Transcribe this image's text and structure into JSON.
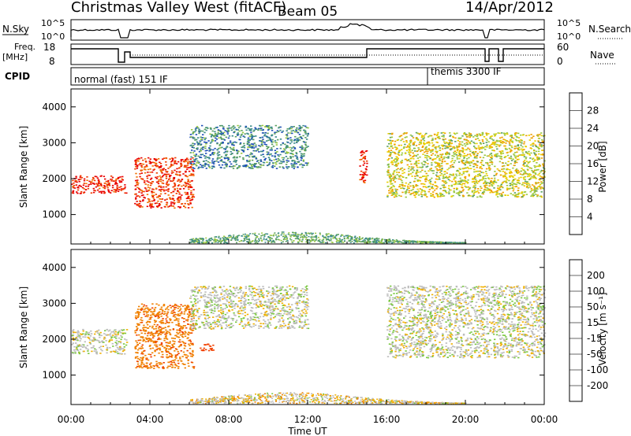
{
  "header": {
    "station": "Christmas Valley West (fitACF)",
    "beam": "Beam 05",
    "date": "14/Apr/2012"
  },
  "strips": {
    "nsky_label": "N.Sky",
    "nsearch_label": "N.Search",
    "ticks_left_top": [
      "10^5",
      "10^0"
    ],
    "ticks_right_top": [
      "10^5",
      "10^0"
    ],
    "freq_label": "Freq.",
    "freq_unit": "[MHz]",
    "freq_ticks": [
      "18",
      "8"
    ],
    "nave_ticks": [
      "60",
      "0"
    ],
    "nave_label": "Nave",
    "cpid_label": "CPID",
    "cpid_left": "normal (fast) 151 IF",
    "cpid_right": "themis 3300 IF"
  },
  "axes": {
    "ylabel": "Slant Range [km]",
    "xlabel": "Time UT",
    "x_ticks": [
      "00:00",
      "04:00",
      "08:00",
      "12:00",
      "16:00",
      "20:00",
      "00:00"
    ],
    "y_ticks": [
      "1000",
      "2000",
      "3000",
      "4000"
    ]
  },
  "colorbars": {
    "power_label": "Power [dB]",
    "power_ticks": [
      "4",
      "8",
      "12",
      "16",
      "20",
      "24",
      "28"
    ],
    "velocity_label": "Velocity [m s⁻¹]",
    "velocity_ticks": [
      "200",
      "100",
      "50",
      "15",
      "-15",
      "-50",
      "-100",
      "-200"
    ],
    "power_colors": [
      "#0000e0",
      "#1f4fb8",
      "#3a8a8a",
      "#5aa060",
      "#9ac840",
      "#e8d000",
      "#f0a000",
      "#f07000",
      "#f03c00",
      "#e80000"
    ],
    "velocity_colors": [
      "#1a2ac8",
      "#2a62c8",
      "#3a9a50",
      "#7ac840",
      "#bcbcbc",
      "#f0b000",
      "#f08000",
      "#f04000",
      "#e80000"
    ]
  },
  "chart_data": [
    {
      "type": "heatmap",
      "title": "Power",
      "x_range": [
        "00:00",
        "00:00"
      ],
      "y_range_km": [
        180,
        4500
      ],
      "colorbar": "Power [dB]",
      "features": [
        {
          "time_start_h": 0.0,
          "time_end_h": 2.8,
          "range_start_km": 1600,
          "range_end_km": 2100,
          "power_db": 28
        },
        {
          "time_start_h": 3.2,
          "time_end_h": 6.2,
          "range_start_km": 1200,
          "range_end_km": 2600,
          "power_db": 26
        },
        {
          "time_start_h": 6.0,
          "time_end_h": 12.0,
          "range_start_km": 2300,
          "range_end_km": 3500,
          "power_db": 8
        },
        {
          "time_start_h": 14.6,
          "time_end_h": 15.0,
          "range_start_km": 1900,
          "range_end_km": 2800,
          "power_db": 28
        },
        {
          "time_start_h": 16.0,
          "time_end_h": 24.0,
          "range_start_km": 1500,
          "range_end_km": 3300,
          "power_db": 16
        }
      ]
    },
    {
      "type": "heatmap",
      "title": "Velocity",
      "x_range": [
        "00:00",
        "00:00"
      ],
      "y_range_km": [
        180,
        4500
      ],
      "colorbar": "Velocity [m s⁻¹]",
      "features": [
        {
          "time_start_h": 0.0,
          "time_end_h": 2.8,
          "range_start_km": 1600,
          "range_end_km": 2300,
          "velocity_ms": 0
        },
        {
          "time_start_h": 3.2,
          "time_end_h": 6.2,
          "range_start_km": 1200,
          "range_end_km": 3000,
          "velocity_ms": -60
        },
        {
          "time_start_h": 6.5,
          "time_end_h": 7.2,
          "range_start_km": 1650,
          "range_end_km": 1900,
          "velocity_ms": -100
        },
        {
          "time_start_h": 6.0,
          "time_end_h": 12.0,
          "range_start_km": 2300,
          "range_end_km": 3500,
          "velocity_ms": 0
        },
        {
          "time_start_h": 16.0,
          "time_end_h": 24.0,
          "range_start_km": 1500,
          "range_end_km": 3500,
          "velocity_ms": 0
        }
      ]
    }
  ]
}
